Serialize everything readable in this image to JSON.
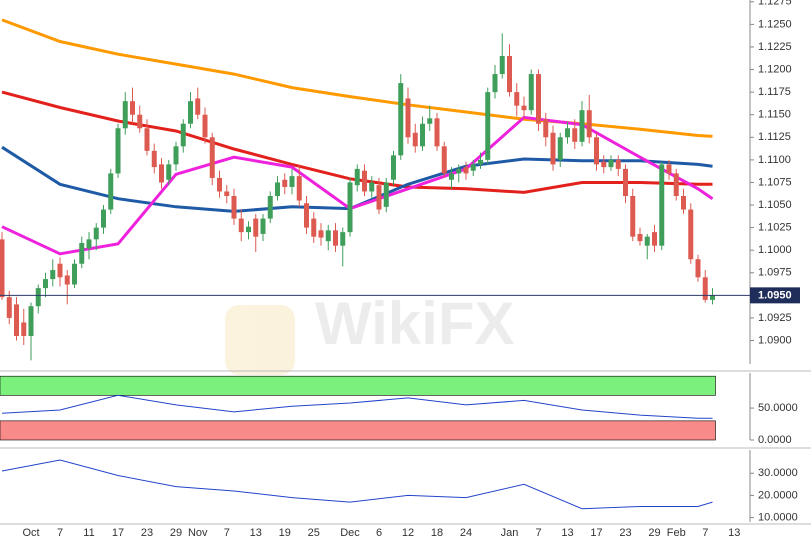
{
  "chart_data": [
    {
      "type": "candlestick",
      "categories": [
        null,
        null,
        null,
        null,
        "Oct",
        null,
        null,
        null,
        "7",
        null,
        null,
        null,
        "11",
        null,
        null,
        null,
        "17",
        null,
        null,
        null,
        "23",
        null,
        null,
        null,
        "29",
        null,
        null,
        "Nov",
        null,
        null,
        null,
        "7",
        null,
        null,
        null,
        "13",
        null,
        null,
        null,
        "19",
        null,
        null,
        null,
        "25",
        null,
        null,
        null,
        null,
        "Dec",
        null,
        null,
        null,
        "6",
        null,
        null,
        null,
        "12",
        null,
        null,
        null,
        "18",
        null,
        null,
        null,
        "24",
        null,
        null,
        null,
        null,
        null,
        "Jan",
        null,
        null,
        null,
        "7",
        null,
        null,
        null,
        "13",
        null,
        null,
        null,
        "17",
        null,
        null,
        null,
        "23",
        null,
        null,
        null,
        "29",
        null,
        null,
        "Feb",
        null,
        null,
        null,
        "7",
        null,
        null,
        null,
        "13"
      ],
      "ohlc": [
        [
          1.1012,
          1.102,
          1.0945,
          1.0948
        ],
        [
          1.0948,
          1.0955,
          1.0918,
          1.0925
        ],
        [
          1.094,
          1.0948,
          1.09,
          1.0905
        ],
        [
          1.092,
          1.0935,
          1.0895,
          1.0905
        ],
        [
          1.0905,
          1.0942,
          1.0878,
          1.0938
        ],
        [
          1.0938,
          1.0962,
          1.093,
          1.0958
        ],
        [
          1.0958,
          1.0975,
          1.0948,
          1.0968
        ],
        [
          1.0968,
          1.099,
          1.096,
          1.0978
        ],
        [
          1.0985,
          1.0992,
          1.096,
          1.097
        ],
        [
          1.0972,
          1.0978,
          1.094,
          1.0962
        ],
        [
          1.0962,
          1.099,
          1.0958,
          1.0985
        ],
        [
          1.0985,
          1.1015,
          1.098,
          1.1008
        ],
        [
          1.1002,
          1.102,
          1.099,
          1.1012
        ],
        [
          1.1012,
          1.103,
          1.1,
          1.1025
        ],
        [
          1.1025,
          1.105,
          1.1018,
          1.1045
        ],
        [
          1.1045,
          1.109,
          1.104,
          1.1085
        ],
        [
          1.1085,
          1.114,
          1.108,
          1.1135
        ],
        [
          1.1135,
          1.1175,
          1.1128,
          1.1165
        ],
        [
          1.1165,
          1.118,
          1.114,
          1.115
        ],
        [
          1.115,
          1.116,
          1.113,
          1.1135
        ],
        [
          1.1135,
          1.1145,
          1.1105,
          1.111
        ],
        [
          1.111,
          1.1118,
          1.1085,
          1.1092
        ],
        [
          1.1095,
          1.1102,
          1.1068,
          1.1075
        ],
        [
          1.1078,
          1.11,
          1.1072,
          1.1095
        ],
        [
          1.1095,
          1.112,
          1.1088,
          1.1115
        ],
        [
          1.1115,
          1.1145,
          1.1108,
          1.114
        ],
        [
          1.114,
          1.1175,
          1.1135,
          1.1165
        ],
        [
          1.1168,
          1.118,
          1.1145,
          1.115
        ],
        [
          1.115,
          1.1158,
          1.1118,
          1.1125
        ],
        [
          1.1125,
          1.113,
          1.1072,
          1.108
        ],
        [
          1.108,
          1.1088,
          1.1058,
          1.1065
        ],
        [
          1.1065,
          1.1072,
          1.1052,
          1.106
        ],
        [
          1.106,
          1.1068,
          1.1028,
          1.1035
        ],
        [
          1.1035,
          1.1045,
          1.101,
          1.102
        ],
        [
          1.102,
          1.1032,
          1.1012,
          1.1026
        ],
        [
          1.1035,
          1.104,
          1.0998,
          1.1015
        ],
        [
          1.1018,
          1.104,
          1.101,
          1.1035
        ],
        [
          1.1035,
          1.1065,
          1.103,
          1.106
        ],
        [
          1.106,
          1.1082,
          1.1055,
          1.1075
        ],
        [
          1.1078,
          1.1085,
          1.1062,
          1.107
        ],
        [
          1.107,
          1.109,
          1.1062,
          1.1082
        ],
        [
          1.1082,
          1.1095,
          1.1048,
          1.1055
        ],
        [
          1.1052,
          1.106,
          1.1018,
          1.1025
        ],
        [
          1.1035,
          1.1042,
          1.1008,
          1.1015
        ],
        [
          1.1022,
          1.103,
          1.1005,
          1.1014
        ],
        [
          1.101,
          1.1028,
          1.1,
          1.1022
        ],
        [
          1.1022,
          1.103,
          1.0998,
          1.1005
        ],
        [
          1.1005,
          1.1025,
          1.0982,
          1.102
        ],
        [
          1.102,
          1.108,
          1.1015,
          1.1075
        ],
        [
          1.1072,
          1.1095,
          1.1065,
          1.109
        ],
        [
          1.1088,
          1.1095,
          1.106,
          1.1065
        ],
        [
          1.1065,
          1.1082,
          1.1058,
          1.1075
        ],
        [
          1.1072,
          1.108,
          1.104,
          1.1045
        ],
        [
          1.1048,
          1.108,
          1.1042,
          1.1075
        ],
        [
          1.1078,
          1.111,
          1.1072,
          1.1105
        ],
        [
          1.1105,
          1.1195,
          1.11,
          1.1185
        ],
        [
          1.1168,
          1.118,
          1.1118,
          1.1125
        ],
        [
          1.113,
          1.114,
          1.1108,
          1.1115
        ],
        [
          1.1115,
          1.1148,
          1.111,
          1.114
        ],
        [
          1.114,
          1.116,
          1.1132,
          1.1146
        ],
        [
          1.1146,
          1.1152,
          1.111,
          1.1115
        ],
        [
          1.1115,
          1.112,
          1.108,
          1.1085
        ],
        [
          1.1078,
          1.1092,
          1.1068,
          1.1085
        ],
        [
          1.1085,
          1.1095,
          1.1075,
          1.109
        ],
        [
          1.1092,
          1.1098,
          1.1078,
          1.1085
        ],
        [
          1.1088,
          1.11,
          1.1082,
          1.1095
        ],
        [
          1.1095,
          1.1108,
          1.109,
          1.11
        ],
        [
          1.11,
          1.118,
          1.1095,
          1.1175
        ],
        [
          1.1175,
          1.1205,
          1.1168,
          1.1195
        ],
        [
          1.1195,
          1.124,
          1.119,
          1.1215
        ],
        [
          1.1215,
          1.1228,
          1.117,
          1.1175
        ],
        [
          1.1175,
          1.1185,
          1.1148,
          1.116
        ],
        [
          1.116,
          1.117,
          1.1145,
          1.1155
        ],
        [
          1.1155,
          1.12,
          1.115,
          1.1195
        ],
        [
          1.1195,
          1.12,
          1.1132,
          1.114
        ],
        [
          1.1145,
          1.1152,
          1.1115,
          1.1125
        ],
        [
          1.113,
          1.1138,
          1.1088,
          1.1095
        ],
        [
          1.11,
          1.113,
          1.1092,
          1.1125
        ],
        [
          1.1125,
          1.1142,
          1.1118,
          1.1135
        ],
        [
          1.1135,
          1.1145,
          1.1112,
          1.112
        ],
        [
          1.112,
          1.1165,
          1.1115,
          1.1155
        ],
        [
          1.1155,
          1.1172,
          1.1118,
          1.1125
        ],
        [
          1.1125,
          1.113,
          1.1088,
          1.1095
        ],
        [
          1.1098,
          1.1105,
          1.1085,
          1.1092
        ],
        [
          1.1092,
          1.1105,
          1.1088,
          1.11
        ],
        [
          1.11,
          1.1105,
          1.1082,
          1.109
        ],
        [
          1.109,
          1.1095,
          1.1052,
          1.106
        ],
        [
          1.106,
          1.1068,
          1.101,
          1.1015
        ],
        [
          1.1018,
          1.1025,
          1.1005,
          1.101
        ],
        [
          1.1005,
          1.1018,
          1.099,
          1.1015
        ],
        [
          1.102,
          1.1028,
          1.0998,
          1.1005
        ],
        [
          1.1005,
          1.1098,
          1.1,
          1.1095
        ],
        [
          1.1095,
          1.11,
          1.1078,
          1.1085
        ],
        [
          1.1085,
          1.109,
          1.1055,
          1.106
        ],
        [
          1.106,
          1.1068,
          1.104,
          1.1045
        ],
        [
          1.1045,
          1.1052,
          1.0985,
          1.099
        ],
        [
          1.099,
          1.0995,
          1.0965,
          1.097
        ],
        [
          1.097,
          1.0978,
          1.0942,
          1.0945
        ],
        [
          1.0945,
          1.0958,
          1.094,
          1.095
        ],
        null,
        null,
        null
      ],
      "up_color": "#3f9e5a",
      "down_color": "#dd5a50",
      "series": [
        {
          "color": "#ff9900",
          "x": [
            0,
            8,
            16,
            24,
            32,
            40,
            48,
            56,
            64,
            72,
            80,
            88,
            96,
            98
          ],
          "values": [
            1.1255,
            1.1231,
            1.1217,
            1.1206,
            1.1195,
            1.118,
            1.117,
            1.1161,
            1.1153,
            1.1145,
            1.114,
            1.1134,
            1.1127,
            1.1126
          ]
        },
        {
          "color": "#e3211c",
          "x": [
            0,
            8,
            16,
            24,
            32,
            40,
            48,
            56,
            64,
            72,
            80,
            88,
            96,
            98
          ],
          "values": [
            1.1175,
            1.1158,
            1.1143,
            1.1132,
            1.1112,
            1.1095,
            1.1079,
            1.107,
            1.1068,
            1.1064,
            1.1075,
            1.1075,
            1.1073,
            1.1073
          ]
        },
        {
          "color": "#1f5aa6",
          "x": [
            0,
            8,
            16,
            24,
            32,
            40,
            48,
            56,
            64,
            72,
            80,
            88,
            96,
            98
          ],
          "values": [
            1.1114,
            1.1073,
            1.1057,
            1.1048,
            1.1043,
            1.1048,
            1.1046,
            1.1073,
            1.1093,
            1.1101,
            1.1099,
            1.1099,
            1.1095,
            1.1093
          ]
        },
        {
          "color": "#ee22dd",
          "x": [
            0,
            8,
            16,
            24,
            32,
            40,
            48,
            56,
            64,
            72,
            80,
            88,
            96,
            98
          ],
          "values": [
            1.1026,
            1.0996,
            1.1007,
            1.1084,
            1.1103,
            1.1092,
            1.1046,
            1.1068,
            1.109,
            1.1147,
            1.1139,
            1.1103,
            1.1068,
            1.1057
          ]
        }
      ],
      "last_price": {
        "value": 1.095,
        "label": "1.0950"
      },
      "ylim": [
        1.0874,
        1.1277
      ],
      "yticks": [
        {
          "value": 1.1275,
          "label": "1.1275"
        },
        {
          "value": 1.125,
          "label": "1.1250"
        },
        {
          "value": 1.1225,
          "label": "1.1225"
        },
        {
          "value": 1.12,
          "label": "1.1200"
        },
        {
          "value": 1.1175,
          "label": "1.1175"
        },
        {
          "value": 1.115,
          "label": "1.1150"
        },
        {
          "value": 1.1125,
          "label": "1.1125"
        },
        {
          "value": 1.11,
          "label": "1.1100"
        },
        {
          "value": 1.1075,
          "label": "1.1075"
        },
        {
          "value": 1.105,
          "label": "1.1050"
        },
        {
          "value": 1.1025,
          "label": "1.1025"
        },
        {
          "value": 1.1,
          "label": "1.1000"
        },
        {
          "value": 1.0975,
          "label": "1.0975"
        },
        {
          "value": 1.095,
          "label": "1.0950"
        },
        {
          "value": 1.0925,
          "label": "1.0925"
        },
        {
          "value": 1.09,
          "label": "1.0900"
        }
      ]
    },
    {
      "type": "line",
      "color": "#2244cc",
      "x": [
        0,
        8,
        16,
        24,
        32,
        40,
        48,
        56,
        64,
        72,
        80,
        88,
        96,
        98
      ],
      "values": [
        42,
        47,
        70,
        55,
        44,
        53,
        58,
        66,
        55,
        62,
        47,
        39,
        34,
        34
      ],
      "bands": [
        {
          "from": 70,
          "to": 100,
          "color": "#7cf07c"
        },
        {
          "from": 0,
          "to": 30,
          "color": "#f88a8a"
        }
      ],
      "ylim": [
        0,
        105
      ],
      "yticks": [
        {
          "value": 50,
          "label": "50.0000"
        },
        {
          "value": 0,
          "label": "0.0000"
        }
      ]
    },
    {
      "type": "line",
      "color": "#2244cc",
      "x": [
        0,
        8,
        16,
        24,
        32,
        40,
        48,
        56,
        64,
        72,
        80,
        88,
        96,
        98
      ],
      "values": [
        31,
        36,
        29,
        24,
        22,
        19,
        17,
        20,
        19,
        25,
        14,
        15,
        15,
        17
      ],
      "ylim": [
        8,
        40.5
      ],
      "yticks": [
        {
          "value": 30,
          "label": "30.0000"
        },
        {
          "value": 20,
          "label": "20.0000"
        },
        {
          "value": 10,
          "label": "10.0000"
        }
      ]
    }
  ],
  "watermark": "WikiFX"
}
